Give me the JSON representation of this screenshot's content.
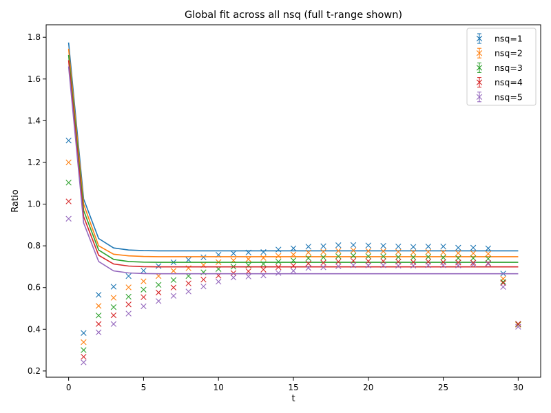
{
  "chart_data": {
    "type": "scatter",
    "title": "Global fit across all nsq (full t-range shown)",
    "xlabel": "t",
    "ylabel": "Ratio",
    "xlim": [
      -1.5,
      31.5
    ],
    "ylim": [
      0.17,
      1.86
    ],
    "xticks": [
      0,
      5,
      10,
      15,
      20,
      25,
      30
    ],
    "yticks": [
      0.2,
      0.4,
      0.6,
      0.8,
      1.0,
      1.2,
      1.4,
      1.6,
      1.8
    ],
    "xtick_labels": [
      "0",
      "5",
      "10",
      "15",
      "20",
      "25",
      "30"
    ],
    "ytick_labels": [
      "0.2",
      "0.4",
      "0.6",
      "0.8",
      "1.0",
      "1.2",
      "1.4",
      "1.6",
      "1.8"
    ],
    "grid": false,
    "legend_position": "top-right",
    "marker": "x",
    "series": [
      {
        "name": "nsq=1",
        "color": "#1f77b4",
        "x": [
          0,
          1,
          2,
          3,
          4,
          5,
          6,
          7,
          8,
          9,
          10,
          11,
          12,
          13,
          14,
          15,
          16,
          17,
          18,
          19,
          20,
          21,
          22,
          23,
          24,
          25,
          26,
          27,
          28,
          29,
          30
        ],
        "values": [
          1.305,
          0.382,
          0.565,
          0.604,
          0.655,
          0.681,
          0.703,
          0.721,
          0.733,
          0.745,
          0.757,
          0.764,
          0.768,
          0.77,
          0.782,
          0.788,
          0.796,
          0.798,
          0.803,
          0.804,
          0.802,
          0.8,
          0.797,
          0.795,
          0.797,
          0.797,
          0.791,
          0.791,
          0.788,
          0.667,
          0.425
        ],
        "fit_x": [
          0,
          1,
          2,
          3,
          4,
          5,
          6,
          7,
          8,
          9,
          10,
          11,
          12,
          13,
          14,
          15,
          16,
          17,
          18,
          19,
          20,
          21,
          22,
          23,
          24,
          25,
          26,
          27,
          28,
          29,
          30
        ],
        "fit": [
          1.775,
          1.025,
          0.835,
          0.79,
          0.78,
          0.777,
          0.776,
          0.776,
          0.776,
          0.776,
          0.776,
          0.776,
          0.776,
          0.776,
          0.776,
          0.776,
          0.776,
          0.776,
          0.776,
          0.776,
          0.776,
          0.776,
          0.776,
          0.776,
          0.776,
          0.776,
          0.776,
          0.776,
          0.776,
          0.776,
          0.776
        ]
      },
      {
        "name": "nsq=2",
        "color": "#ff7f0e",
        "x": [
          0,
          1,
          2,
          3,
          4,
          5,
          6,
          7,
          8,
          9,
          10,
          11,
          12,
          13,
          14,
          15,
          16,
          17,
          18,
          19,
          20,
          21,
          22,
          23,
          24,
          25,
          26,
          27,
          28,
          29,
          30
        ],
        "values": [
          1.2,
          0.338,
          0.512,
          0.551,
          0.601,
          0.63,
          0.655,
          0.68,
          0.693,
          0.708,
          0.722,
          0.73,
          0.736,
          0.742,
          0.752,
          0.758,
          0.768,
          0.771,
          0.776,
          0.778,
          0.775,
          0.774,
          0.771,
          0.769,
          0.771,
          0.769,
          0.765,
          0.764,
          0.762,
          0.642,
          0.422
        ],
        "fit_x": [
          0,
          1,
          2,
          3,
          4,
          5,
          6,
          7,
          8,
          9,
          10,
          11,
          12,
          13,
          14,
          15,
          16,
          17,
          18,
          19,
          20,
          21,
          22,
          23,
          24,
          25,
          26,
          27,
          28,
          29,
          30
        ],
        "fit": [
          1.745,
          1.0,
          0.8,
          0.76,
          0.752,
          0.749,
          0.748,
          0.748,
          0.748,
          0.748,
          0.748,
          0.748,
          0.748,
          0.748,
          0.748,
          0.748,
          0.748,
          0.748,
          0.748,
          0.748,
          0.748,
          0.748,
          0.748,
          0.748,
          0.748,
          0.748,
          0.748,
          0.748,
          0.748,
          0.748,
          0.748
        ]
      },
      {
        "name": "nsq=3",
        "color": "#2ca02c",
        "x": [
          0,
          1,
          2,
          3,
          4,
          5,
          6,
          7,
          8,
          9,
          10,
          11,
          12,
          13,
          14,
          15,
          16,
          17,
          18,
          19,
          20,
          21,
          22,
          23,
          24,
          25,
          26,
          27,
          28,
          29,
          30
        ],
        "values": [
          1.103,
          0.3,
          0.466,
          0.506,
          0.556,
          0.59,
          0.613,
          0.636,
          0.655,
          0.673,
          0.689,
          0.7,
          0.707,
          0.713,
          0.724,
          0.73,
          0.741,
          0.745,
          0.75,
          0.753,
          0.75,
          0.749,
          0.746,
          0.745,
          0.747,
          0.744,
          0.741,
          0.741,
          0.738,
          0.627,
          0.424
        ],
        "fit_x": [
          0,
          1,
          2,
          3,
          4,
          5,
          6,
          7,
          8,
          9,
          10,
          11,
          12,
          13,
          14,
          15,
          16,
          17,
          18,
          19,
          20,
          21,
          22,
          23,
          24,
          25,
          26,
          27,
          28,
          29,
          30
        ],
        "fit": [
          1.715,
          0.97,
          0.78,
          0.735,
          0.725,
          0.722,
          0.721,
          0.721,
          0.721,
          0.721,
          0.721,
          0.721,
          0.721,
          0.721,
          0.721,
          0.721,
          0.721,
          0.721,
          0.721,
          0.721,
          0.721,
          0.721,
          0.721,
          0.721,
          0.721,
          0.721,
          0.721,
          0.721,
          0.721,
          0.721,
          0.721
        ]
      },
      {
        "name": "nsq=4",
        "color": "#d62728",
        "x": [
          0,
          1,
          2,
          3,
          4,
          5,
          6,
          7,
          8,
          9,
          10,
          11,
          12,
          13,
          14,
          15,
          16,
          17,
          18,
          19,
          20,
          21,
          22,
          23,
          24,
          25,
          26,
          27,
          28,
          29,
          30
        ],
        "values": [
          1.013,
          0.268,
          0.425,
          0.467,
          0.519,
          0.554,
          0.576,
          0.6,
          0.62,
          0.638,
          0.657,
          0.669,
          0.678,
          0.686,
          0.698,
          0.705,
          0.715,
          0.719,
          0.724,
          0.728,
          0.726,
          0.726,
          0.724,
          0.722,
          0.724,
          0.722,
          0.72,
          0.719,
          0.717,
          0.622,
          0.426
        ],
        "fit_x": [
          0,
          1,
          2,
          3,
          4,
          5,
          6,
          7,
          8,
          9,
          10,
          11,
          12,
          13,
          14,
          15,
          16,
          17,
          18,
          19,
          20,
          21,
          22,
          23,
          24,
          25,
          26,
          27,
          28,
          29,
          30
        ],
        "fit": [
          1.69,
          0.94,
          0.755,
          0.713,
          0.703,
          0.7,
          0.699,
          0.699,
          0.699,
          0.699,
          0.699,
          0.699,
          0.699,
          0.699,
          0.699,
          0.699,
          0.699,
          0.699,
          0.699,
          0.699,
          0.699,
          0.699,
          0.699,
          0.699,
          0.699,
          0.699,
          0.699,
          0.699,
          0.699,
          0.699,
          0.699
        ]
      },
      {
        "name": "nsq=5",
        "color": "#9467bd",
        "x": [
          0,
          1,
          2,
          3,
          4,
          5,
          6,
          7,
          8,
          9,
          10,
          11,
          12,
          13,
          14,
          15,
          16,
          17,
          18,
          19,
          20,
          21,
          22,
          23,
          24,
          25,
          26,
          27,
          28,
          29,
          30
        ],
        "values": [
          0.93,
          0.241,
          0.385,
          0.425,
          0.475,
          0.51,
          0.535,
          0.56,
          0.581,
          0.605,
          0.628,
          0.648,
          0.653,
          0.658,
          0.67,
          0.68,
          0.694,
          0.697,
          0.702,
          0.707,
          0.706,
          0.707,
          0.705,
          0.705,
          0.707,
          0.707,
          0.706,
          0.711,
          0.714,
          0.603,
          0.412
        ],
        "fit_x": [
          0,
          1,
          2,
          3,
          4,
          5,
          6,
          7,
          8,
          9,
          10,
          11,
          12,
          13,
          14,
          15,
          16,
          17,
          18,
          19,
          20,
          21,
          22,
          23,
          24,
          25,
          26,
          27,
          28,
          29,
          30
        ],
        "fit": [
          1.66,
          0.91,
          0.725,
          0.68,
          0.67,
          0.667,
          0.666,
          0.666,
          0.666,
          0.666,
          0.666,
          0.666,
          0.666,
          0.666,
          0.666,
          0.666,
          0.666,
          0.666,
          0.666,
          0.666,
          0.666,
          0.666,
          0.666,
          0.666,
          0.666,
          0.666,
          0.666,
          0.666,
          0.666,
          0.666,
          0.666
        ]
      }
    ]
  }
}
